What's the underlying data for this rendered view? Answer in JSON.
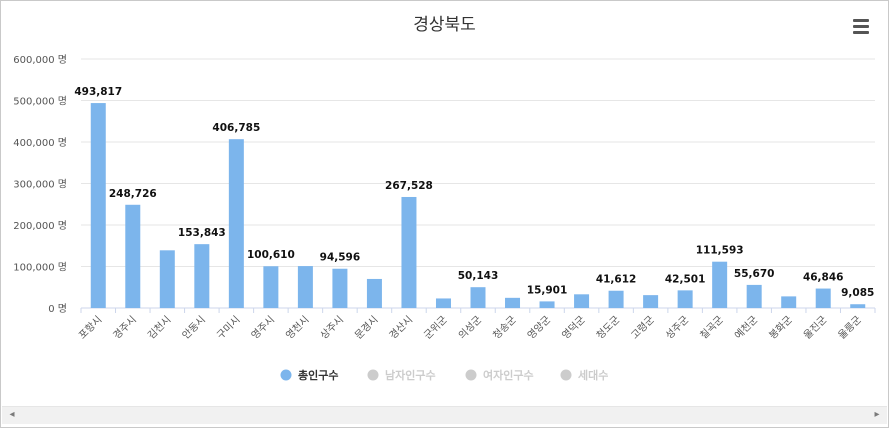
{
  "menu_icon": "hamburger-menu-icon",
  "scrollbar": {
    "left_arrow": "◂",
    "right_arrow": "▸"
  },
  "colors": {
    "bar": "#7cb5ec",
    "inactive": "#cccccc",
    "grid": "#e6e6e6",
    "axis": "#ccd6eb"
  },
  "chart_data": {
    "type": "bar",
    "title": "경상북도",
    "xlabel": "",
    "ylabel": "",
    "ylim": [
      0,
      600000
    ],
    "yticks": [
      0,
      100000,
      200000,
      300000,
      400000,
      500000,
      600000
    ],
    "ytick_labels": [
      "0 명",
      "100,000 명",
      "200,000 명",
      "300,000 명",
      "400,000 명",
      "500,000 명",
      "600,000 명"
    ],
    "grid": true,
    "legend_position": "bottom-center",
    "categories": [
      "포항시",
      "경주시",
      "김천시",
      "안동시",
      "구미시",
      "영주시",
      "영천시",
      "상주시",
      "문경시",
      "경산시",
      "군위군",
      "의성군",
      "청송군",
      "영양군",
      "영덕군",
      "청도군",
      "고령군",
      "성주군",
      "칠곡군",
      "예천군",
      "봉화군",
      "울진군",
      "울릉군"
    ],
    "series": [
      {
        "name": "총인구수",
        "visible": true,
        "color": "#7cb5ec",
        "values": [
          493817,
          248726,
          139000,
          153843,
          406785,
          100610,
          101000,
          94596,
          70000,
          267528,
          23000,
          50143,
          24500,
          15901,
          33000,
          41612,
          31000,
          42501,
          111593,
          55670,
          28000,
          46846,
          9085
        ],
        "labels": [
          "493,817",
          "248,726",
          "",
          "153,843",
          "406,785",
          "100,610",
          "",
          "94,596",
          "",
          "267,528",
          "",
          "50,143",
          "",
          "15,901",
          "",
          "41,612",
          "",
          "42,501",
          "111,593",
          "55,670",
          "",
          "46,846",
          "9,085"
        ]
      },
      {
        "name": "남자인구수",
        "visible": false,
        "color": "#cccccc"
      },
      {
        "name": "여자인구수",
        "visible": false,
        "color": "#cccccc"
      },
      {
        "name": "세대수",
        "visible": false,
        "color": "#cccccc"
      }
    ]
  }
}
